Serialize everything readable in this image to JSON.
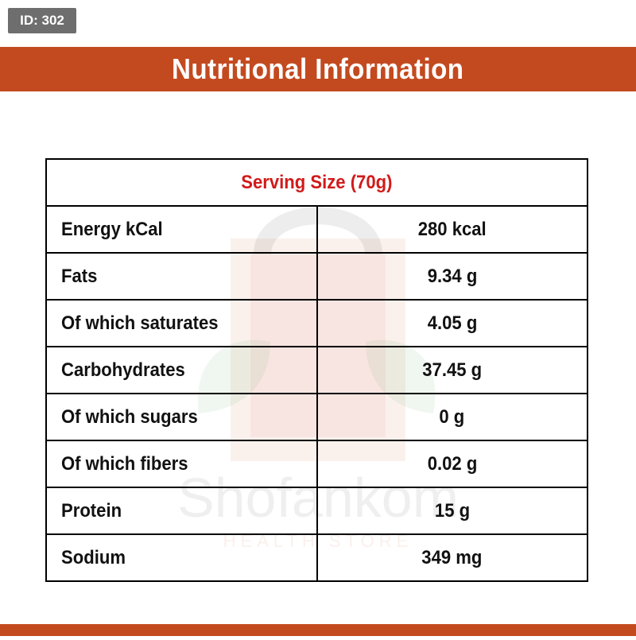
{
  "badge": {
    "id_label": "ID: 302"
  },
  "header": {
    "title": "Nutritional Information"
  },
  "watermark": {
    "brand": "Shofankom",
    "tagline": "HEALTH STORE"
  },
  "table": {
    "serving_size": "Serving Size (70g)",
    "rows": [
      {
        "label": "Energy kCal",
        "value": "280 kcal"
      },
      {
        "label": "Fats",
        "value": "9.34 g"
      },
      {
        "label": "Of which saturates",
        "value": "4.05 g"
      },
      {
        "label": "Carbohydrates",
        "value": "37.45 g"
      },
      {
        "label": "Of which sugars",
        "value": "0 g"
      },
      {
        "label": "Of which fibers",
        "value": "0.02 g"
      },
      {
        "label": "Protein",
        "value": "15 g"
      },
      {
        "label": "Sodium",
        "value": "349 mg"
      }
    ]
  },
  "colors": {
    "accent_band": "#c34a1f",
    "serving_text": "#d11a1a",
    "badge_bg": "#6e6e6e",
    "border": "#000000"
  }
}
